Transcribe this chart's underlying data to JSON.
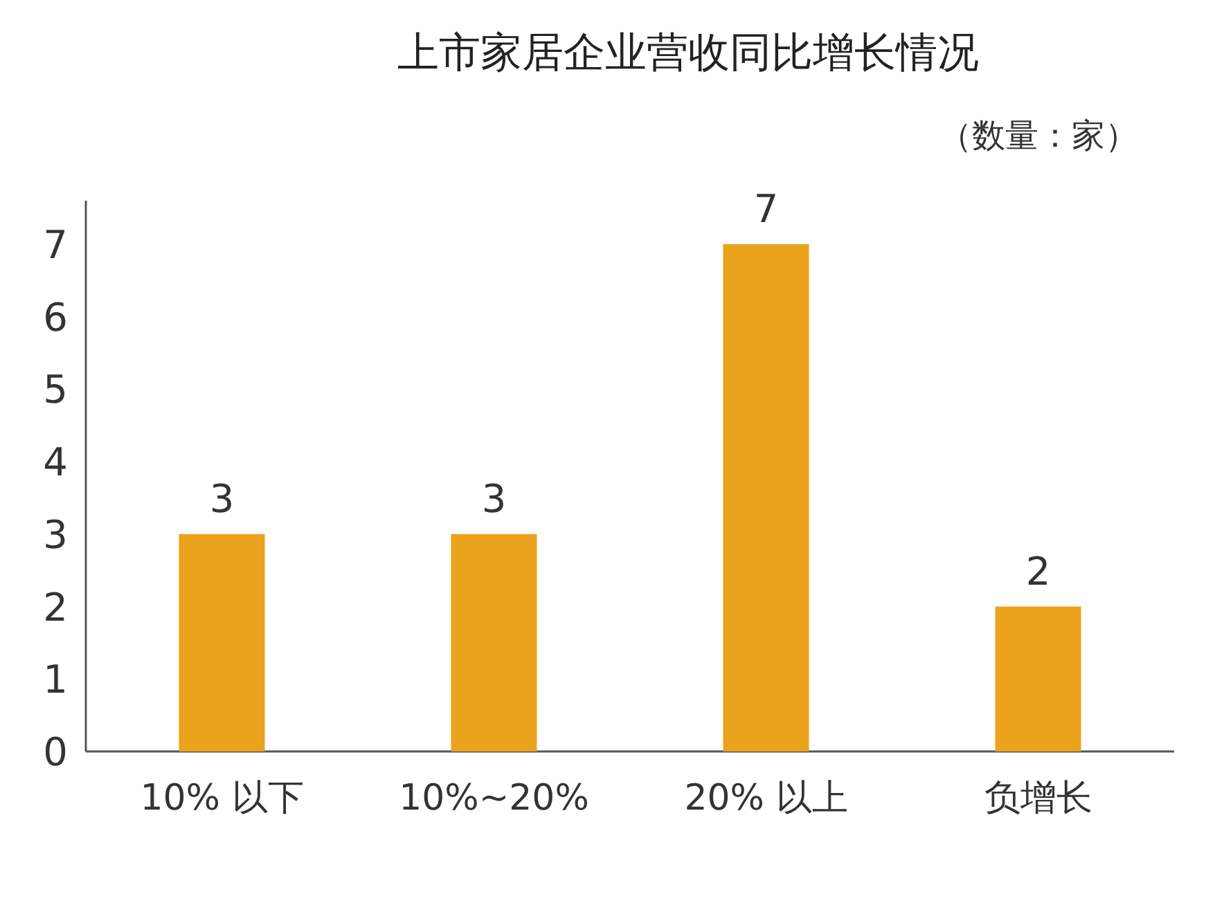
{
  "chart_data": {
    "type": "bar",
    "title": "上市家居企业营收同比增长情况",
    "subtitle": "（数量：家）",
    "categories": [
      "10% 以下",
      "10%~20%",
      "20% 以上",
      "负增长"
    ],
    "values": [
      3,
      3,
      7,
      2
    ],
    "color": "#eba21c",
    "ylim": [
      0,
      7.6
    ],
    "yticks": [
      0,
      1,
      2,
      3,
      4,
      5,
      6,
      7
    ],
    "data_labels": true
  }
}
